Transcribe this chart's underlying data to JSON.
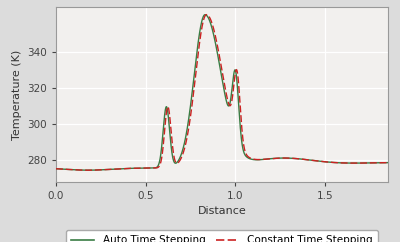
{
  "title": "",
  "xlabel": "Distance",
  "ylabel": "Temperature (K)",
  "xlim": [
    0,
    1.85
  ],
  "ylim": [
    268,
    365
  ],
  "yticks": [
    280,
    300,
    320,
    340
  ],
  "xticks": [
    0,
    0.5,
    1.0,
    1.5
  ],
  "bg_color": "#dcdcdc",
  "plot_bg_color": "#f2f0ee",
  "grid_color": "#ffffff",
  "line_color_auto": "#3a7d44",
  "line_color_const": "#cc2222",
  "legend_labels": [
    "Auto Time Stepping",
    "Constant Time Stepping"
  ],
  "base_y": 275.5
}
